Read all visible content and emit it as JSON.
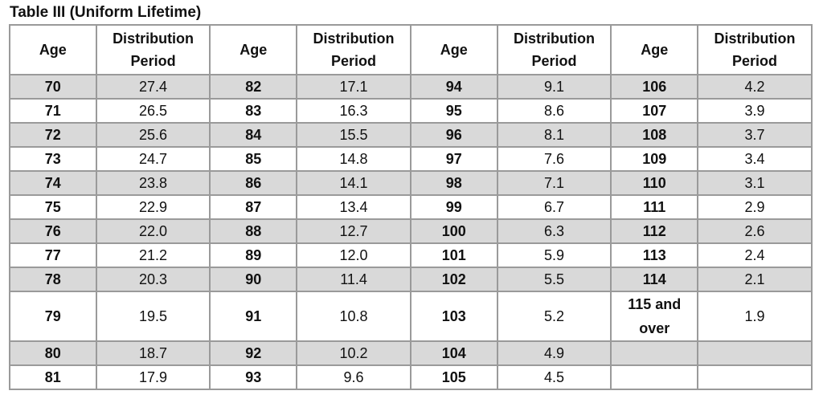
{
  "title": "Table III (Uniform Lifetime)",
  "headers": {
    "age": "Age",
    "distribution": "Distribution",
    "period": "Period"
  },
  "rows": [
    [
      [
        "70",
        "27.4"
      ],
      [
        "82",
        "17.1"
      ],
      [
        "94",
        "9.1"
      ],
      [
        "106",
        "4.2"
      ]
    ],
    [
      [
        "71",
        "26.5"
      ],
      [
        "83",
        "16.3"
      ],
      [
        "95",
        "8.6"
      ],
      [
        "107",
        "3.9"
      ]
    ],
    [
      [
        "72",
        "25.6"
      ],
      [
        "84",
        "15.5"
      ],
      [
        "96",
        "8.1"
      ],
      [
        "108",
        "3.7"
      ]
    ],
    [
      [
        "73",
        "24.7"
      ],
      [
        "85",
        "14.8"
      ],
      [
        "97",
        "7.6"
      ],
      [
        "109",
        "3.4"
      ]
    ],
    [
      [
        "74",
        "23.8"
      ],
      [
        "86",
        "14.1"
      ],
      [
        "98",
        "7.1"
      ],
      [
        "110",
        "3.1"
      ]
    ],
    [
      [
        "75",
        "22.9"
      ],
      [
        "87",
        "13.4"
      ],
      [
        "99",
        "6.7"
      ],
      [
        "111",
        "2.9"
      ]
    ],
    [
      [
        "76",
        "22.0"
      ],
      [
        "88",
        "12.7"
      ],
      [
        "100",
        "6.3"
      ],
      [
        "112",
        "2.6"
      ]
    ],
    [
      [
        "77",
        "21.2"
      ],
      [
        "89",
        "12.0"
      ],
      [
        "101",
        "5.9"
      ],
      [
        "113",
        "2.4"
      ]
    ],
    [
      [
        "78",
        "20.3"
      ],
      [
        "90",
        "11.4"
      ],
      [
        "102",
        "5.5"
      ],
      [
        "114",
        "2.1"
      ]
    ],
    [
      [
        "79",
        "19.5"
      ],
      [
        "91",
        "10.8"
      ],
      [
        "103",
        "5.2"
      ],
      [
        "115 and over",
        "1.9"
      ]
    ],
    [
      [
        "80",
        "18.7"
      ],
      [
        "92",
        "10.2"
      ],
      [
        "104",
        "4.9"
      ],
      [
        "",
        ""
      ]
    ],
    [
      [
        "81",
        "17.9"
      ],
      [
        "93",
        "9.6"
      ],
      [
        "105",
        "4.5"
      ],
      [
        "",
        ""
      ]
    ]
  ],
  "shade_color": "#d9d9d9",
  "border_color": "#9a9a9a"
}
